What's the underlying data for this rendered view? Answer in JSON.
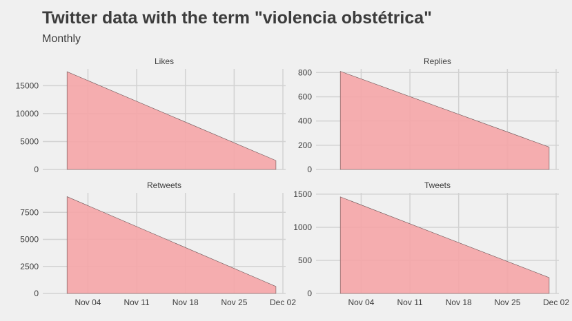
{
  "title": "Twitter data with the term \"violencia obstétrica\"",
  "subtitle": "Monthly",
  "chart_data": {
    "type": "area",
    "x_tick_labels": [
      "Nov 04",
      "Nov 11",
      "Nov 18",
      "Nov 25",
      "Dec 02"
    ],
    "x_ticks": [
      "2022-11-04",
      "2022-11-11",
      "2022-11-18",
      "2022-11-25",
      "2022-12-02"
    ],
    "x": [
      "2022-11-01",
      "2022-12-01"
    ],
    "xlim": [
      "2022-10-30",
      "2022-12-02"
    ],
    "fill_color": "#f5a5a7",
    "line_color": "#6b5556",
    "background_color": "#f0f0f0",
    "grid": true,
    "panels": [
      {
        "name": "Likes",
        "values": [
          17500,
          1600
        ],
        "ylim": [
          0,
          18000
        ],
        "yticks": [
          0,
          5000,
          10000,
          15000
        ]
      },
      {
        "name": "Replies",
        "values": [
          810,
          185
        ],
        "ylim": [
          0,
          830
        ],
        "yticks": [
          0,
          200,
          400,
          600,
          800
        ]
      },
      {
        "name": "Retweets",
        "values": [
          8950,
          650
        ],
        "ylim": [
          0,
          9300
        ],
        "yticks": [
          0,
          2500,
          5000,
          7500
        ]
      },
      {
        "name": "Tweets",
        "values": [
          1460,
          240
        ],
        "ylim": [
          0,
          1520
        ],
        "yticks": [
          0,
          500,
          1000,
          1500
        ]
      }
    ]
  }
}
